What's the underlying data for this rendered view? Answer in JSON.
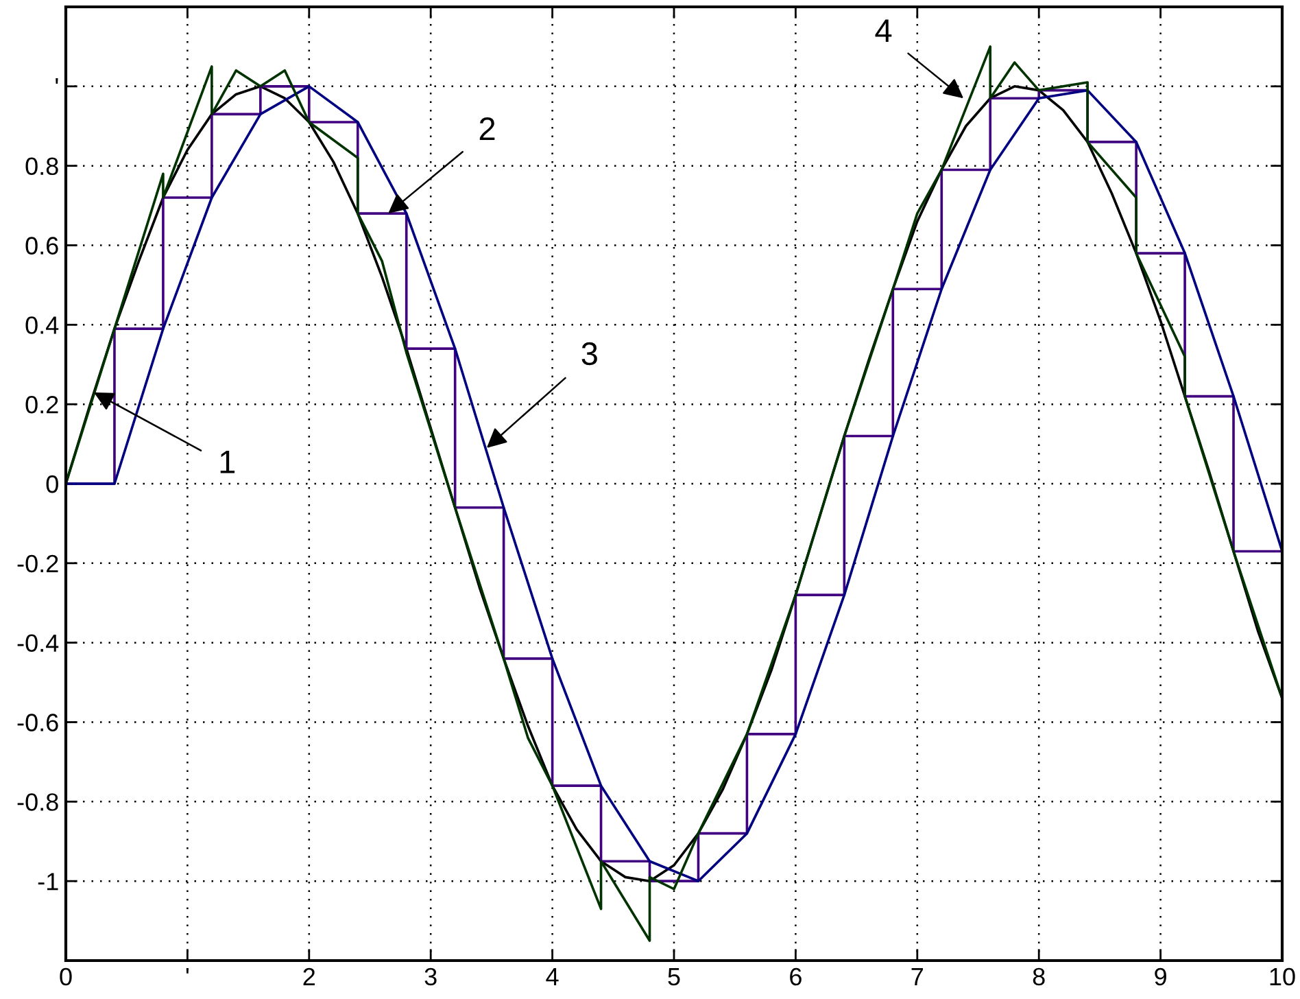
{
  "chart_data": {
    "type": "line",
    "xlim": [
      0,
      10
    ],
    "ylim": [
      -1.2,
      1.2
    ],
    "xticks": [
      0,
      {
        "value": 1,
        "label": "'"
      },
      2,
      3,
      4,
      5,
      6,
      7,
      8,
      9,
      10
    ],
    "yticks": [
      -1,
      -0.8,
      -0.6,
      -0.4,
      -0.2,
      0,
      0.2,
      0.4,
      0.6,
      0.8,
      {
        "value": 1,
        "label": "'"
      }
    ],
    "grid": true,
    "marker": "none",
    "line_style": "solid",
    "series": [
      {
        "color": "#000000",
        "x": [
          0,
          0.2,
          0.4,
          0.6,
          0.8,
          1.0,
          1.2,
          1.4,
          1.6,
          1.8,
          2.0,
          2.2,
          2.4,
          2.6,
          2.8,
          3.0,
          3.2,
          3.4,
          3.6,
          3.8,
          4.0,
          4.2,
          4.4,
          4.6,
          4.8,
          5.0,
          5.2,
          5.4,
          5.6,
          5.8,
          6.0,
          6.2,
          6.4,
          6.6,
          6.8,
          7.0,
          7.2,
          7.4,
          7.6,
          7.8,
          8.0,
          8.2,
          8.4,
          8.6,
          8.8,
          9.0,
          9.2,
          9.4,
          9.6,
          9.8,
          10
        ],
        "values": [
          0,
          0.2,
          0.39,
          0.56,
          0.72,
          0.84,
          0.93,
          0.98,
          1.0,
          0.97,
          0.91,
          0.81,
          0.68,
          0.52,
          0.34,
          0.14,
          -0.06,
          -0.26,
          -0.44,
          -0.61,
          -0.76,
          -0.87,
          -0.95,
          -0.99,
          -1.0,
          -0.96,
          -0.88,
          -0.77,
          -0.63,
          -0.47,
          -0.28,
          -0.08,
          0.12,
          0.31,
          0.49,
          0.66,
          0.79,
          0.9,
          0.97,
          1.0,
          0.99,
          0.94,
          0.86,
          0.73,
          0.58,
          0.41,
          0.22,
          0.03,
          -0.17,
          -0.37,
          -0.54
        ]
      },
      {
        "type": "step",
        "color": "#400080",
        "x": [
          0,
          0.4,
          0.8,
          1.2,
          1.6,
          2.0,
          2.4,
          2.8,
          3.2,
          3.6,
          4.0,
          4.4,
          4.8,
          5.2,
          5.6,
          6.0,
          6.4,
          6.8,
          7.2,
          7.6,
          8.0,
          8.4,
          8.8,
          9.2,
          9.6,
          10
        ],
        "values": [
          0,
          0.39,
          0.72,
          0.93,
          1.0,
          0.91,
          0.68,
          0.34,
          -0.06,
          -0.44,
          -0.76,
          -0.95,
          -1.0,
          -0.88,
          -0.63,
          -0.28,
          0.12,
          0.49,
          0.79,
          0.97,
          0.99,
          0.86,
          0.58,
          0.22,
          -0.17,
          -0.54
        ]
      },
      {
        "color": "#000080",
        "x": [
          0,
          0.4,
          0.8,
          1.2,
          1.6,
          2.0,
          2.4,
          2.8,
          3.2,
          3.6,
          4.0,
          4.4,
          4.8,
          5.2,
          5.6,
          6.0,
          6.4,
          6.8,
          7.2,
          7.6,
          8.0,
          8.4,
          8.8,
          9.2,
          9.6,
          10
        ],
        "values": [
          0,
          0,
          0.39,
          0.72,
          0.93,
          1.0,
          0.91,
          0.68,
          0.34,
          -0.06,
          -0.44,
          -0.76,
          -0.95,
          -1.0,
          -0.88,
          -0.63,
          -0.28,
          0.12,
          0.49,
          0.79,
          0.97,
          0.99,
          0.86,
          0.58,
          0.22,
          -0.17
        ]
      },
      {
        "color": "#003300",
        "x": [
          0,
          0.4,
          0.8,
          0.8,
          1.2,
          1.2,
          1.4,
          1.6,
          1.8,
          2.0,
          2.4,
          2.4,
          2.6,
          2.8,
          3.2,
          3.6,
          3.8,
          4.0,
          4.4,
          4.4,
          4.8,
          4.8,
          5.0,
          5.2,
          5.6,
          6.0,
          6.4,
          6.8,
          7.0,
          7.2,
          7.6,
          7.6,
          7.8,
          8.0,
          8.4,
          8.4,
          8.8,
          8.8,
          9.2,
          9.2,
          9.6,
          10
        ],
        "values": [
          0,
          0.39,
          0.78,
          0.72,
          1.05,
          0.93,
          1.04,
          1.0,
          1.04,
          0.91,
          0.82,
          0.68,
          0.56,
          0.33,
          -0.06,
          -0.44,
          -0.64,
          -0.76,
          -1.07,
          -0.95,
          -1.15,
          -0.99,
          -1.02,
          -0.88,
          -0.63,
          -0.28,
          0.12,
          0.49,
          0.68,
          0.79,
          1.1,
          0.97,
          1.06,
          0.99,
          1.01,
          0.86,
          0.72,
          0.58,
          0.32,
          0.22,
          -0.17,
          -0.54
        ]
      }
    ],
    "annotations": [
      {
        "text": "1",
        "x": 0.23,
        "y": 0.23
      },
      {
        "text": "2",
        "x": 2.65,
        "y": 0.68
      },
      {
        "text": "3",
        "x": 3.46,
        "y": 0.09
      },
      {
        "text": "4",
        "x": 7.38,
        "y": 0.97
      }
    ]
  }
}
